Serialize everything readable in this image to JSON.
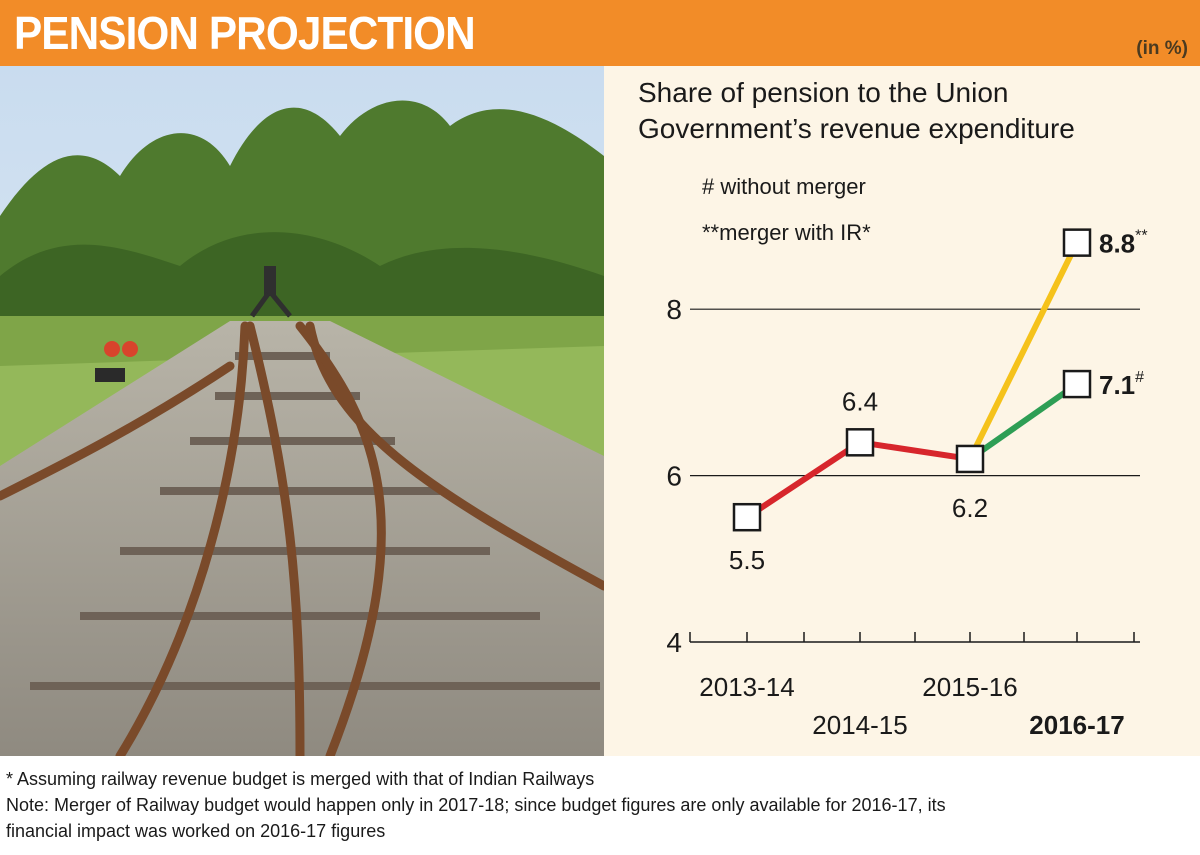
{
  "header": {
    "title": "PENSION PROJECTION",
    "unit": "(in %)"
  },
  "photo": {
    "subject": "railway track junction"
  },
  "chart_data": {
    "type": "line",
    "title": "Share of pension to the Union Government’s revenue expenditure",
    "title_lines": [
      "Share of pension to the Union",
      "Government’s revenue expenditure"
    ],
    "legend": [
      "# without merger",
      "**merger with IR*"
    ],
    "categories": [
      "2013-14",
      "2014-15",
      "2015-16",
      "2016-17"
    ],
    "ylim": [
      4,
      9
    ],
    "yticks": [
      "4",
      "6",
      "8"
    ],
    "grid": true,
    "base_series": {
      "x": [
        "2013-14",
        "2014-15",
        "2015-16"
      ],
      "values": [
        5.5,
        6.4,
        6.2
      ],
      "labels": [
        "5.5",
        "6.4",
        "6.2"
      ],
      "color": "#d7262c"
    },
    "branches": [
      {
        "from": "2015-16",
        "x": "2016-17",
        "value": 8.8,
        "label": "8.8",
        "marker": "**",
        "color": "#f5c21b"
      },
      {
        "from": "2015-16",
        "x": "2016-17",
        "value": 7.1,
        "label": "7.1",
        "marker": "#",
        "color": "#2e9e55"
      }
    ]
  },
  "footnotes": [
    "* Assuming railway revenue budget is merged with that of Indian Railways",
    "Note: Merger of Railway budget would happen only in 2017-18; since budget figures are only available for 2016-17, its",
    "financial impact was worked on 2016-17 figures"
  ]
}
